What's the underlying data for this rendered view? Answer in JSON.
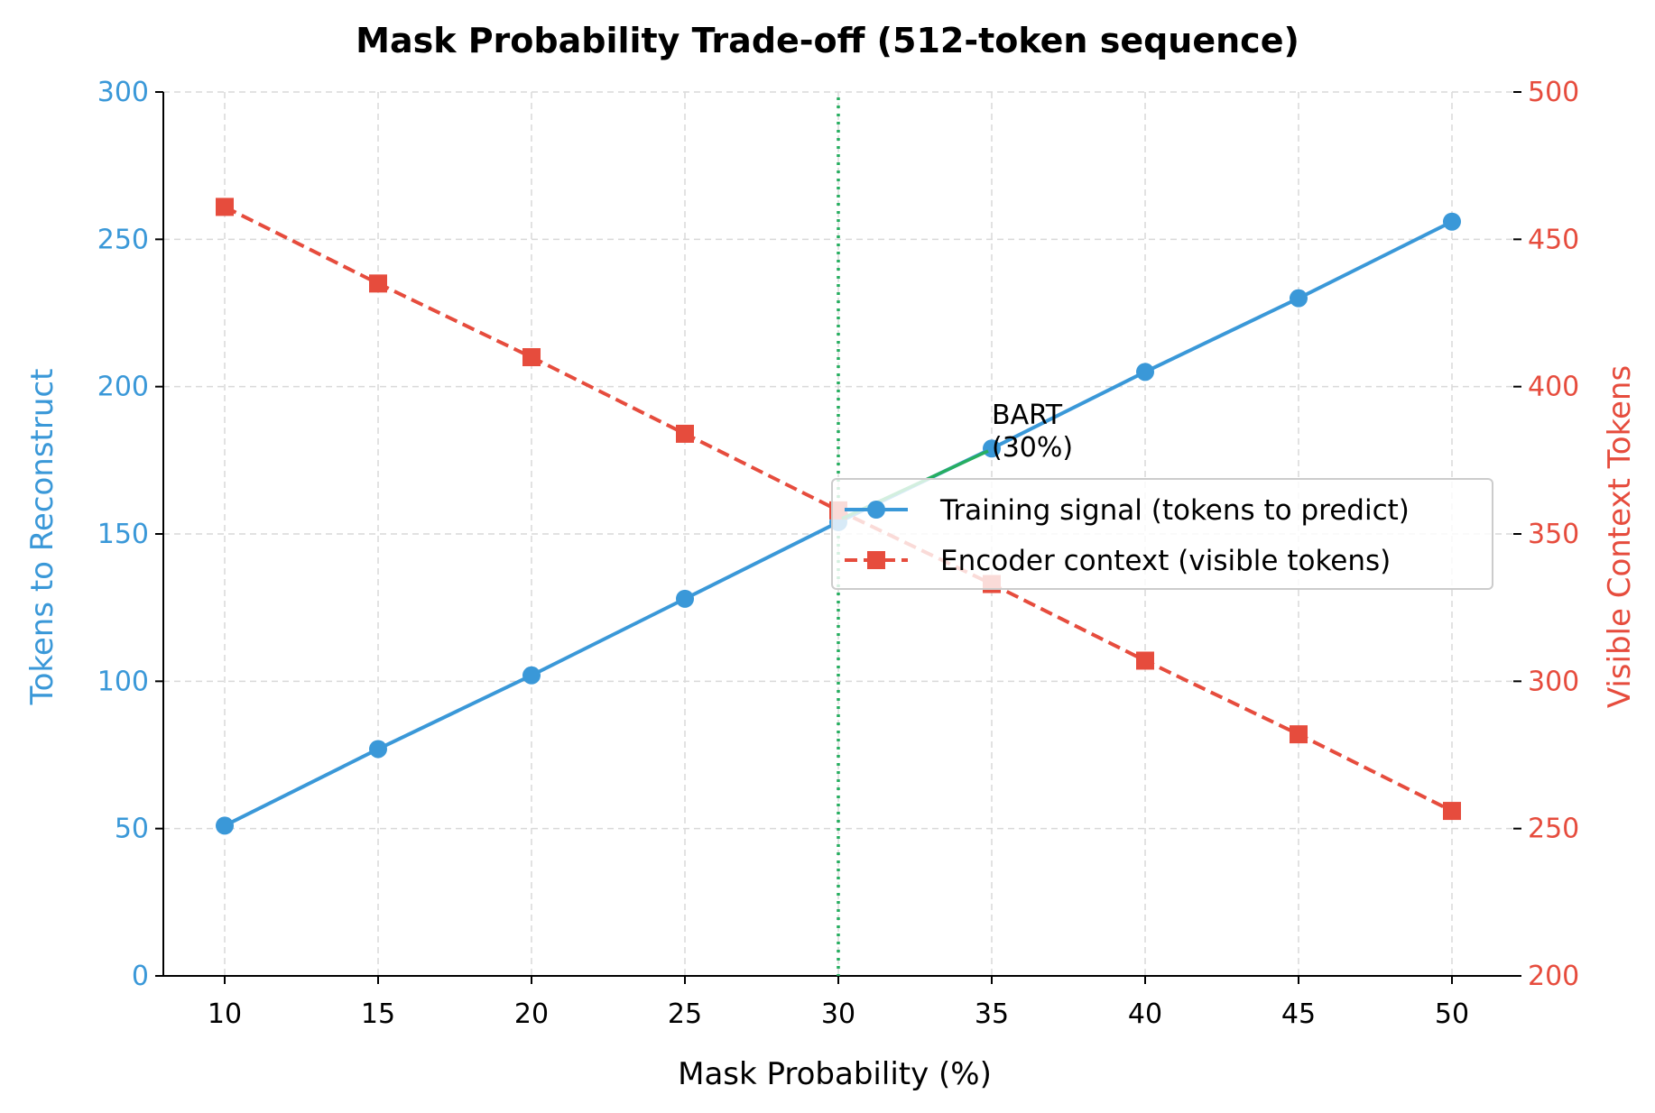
{
  "chart_data": {
    "type": "line",
    "title": "Mask Probability Trade-off (512-token sequence)",
    "xlabel": "Mask Probability (%)",
    "ylabel_left": "Tokens to Reconstruct",
    "ylabel_right": "Visible Context Tokens",
    "x": [
      10,
      15,
      20,
      25,
      30,
      35,
      40,
      45,
      50
    ],
    "xlim": [
      8,
      52
    ],
    "ylim_left": [
      0,
      300
    ],
    "ylim_right": [
      200,
      500
    ],
    "x_ticks": [
      10,
      15,
      20,
      25,
      30,
      35,
      40,
      45,
      50
    ],
    "y_ticks_left": [
      0,
      50,
      100,
      150,
      200,
      250,
      300
    ],
    "y_ticks_right": [
      200,
      250,
      300,
      350,
      400,
      450,
      500
    ],
    "grid": true,
    "legend_position": "center-right",
    "series": [
      {
        "name": "Training signal (tokens to predict)",
        "axis": "left",
        "color": "#3a98d8",
        "style": "solid",
        "marker": "circle",
        "values": [
          51,
          77,
          102,
          128,
          154,
          179,
          205,
          230,
          256
        ]
      },
      {
        "name": "Encoder context (visible tokens)",
        "axis": "right",
        "color": "#e64c3d",
        "style": "dashed",
        "marker": "square",
        "values": [
          461,
          435,
          410,
          384,
          358,
          333,
          307,
          282,
          256
        ]
      }
    ],
    "reference_line": {
      "x": 30,
      "color": "#27ae60",
      "style": "dotted"
    },
    "annotation": {
      "lines": [
        "BART",
        "(30%)"
      ],
      "x_text": 35,
      "y_text": 180,
      "arrow_to": {
        "x": 30,
        "y": 154
      },
      "arrow_color": "#27ae60"
    }
  }
}
